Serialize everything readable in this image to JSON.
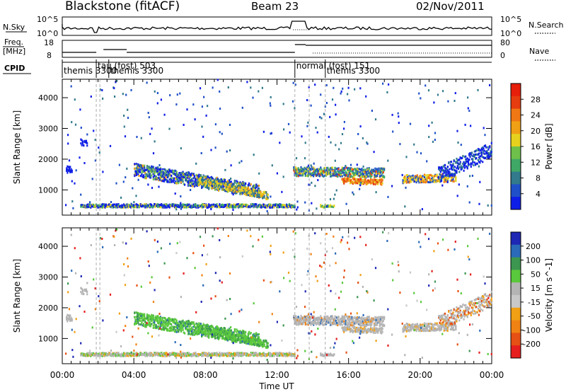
{
  "header": {
    "station": "Blackstone (fitACF)",
    "beam": "Beam 23",
    "date": "02/Nov/2011"
  },
  "labels": {
    "nsky": "N.Sky",
    "nsearch": "N.Search",
    "freq_line1": "Freq.",
    "freq_line2": "[MHz]",
    "nave": "Nave",
    "cpid": "CPID",
    "xlabel": "Time UT",
    "ylabel": "Slant Range [km]"
  },
  "noise_panel": {
    "left_ticks": [
      "10^5",
      "10^0"
    ],
    "right_ticks": [
      "10^5",
      "10^0"
    ]
  },
  "freq_panel": {
    "left_ticks": [
      18,
      8
    ],
    "right_ticks": [
      80,
      0
    ]
  },
  "cpid_segments": [
    {
      "label": "themis 3300",
      "start_hr": 0.0,
      "end_hr": 1.9
    },
    {
      "label": "tau (fost) 503",
      "start_hr": 1.9,
      "end_hr": 2.6
    },
    {
      "label": "themis 3300",
      "start_hr": 2.6,
      "end_hr": 13.0
    },
    {
      "label": "normal (fost) 151",
      "start_hr": 13.0,
      "end_hr": 14.7
    },
    {
      "label": "themis 3300",
      "start_hr": 14.7,
      "end_hr": 24.0
    }
  ],
  "chart_data": [
    {
      "type": "heatmap",
      "name": "power",
      "xlabel": "Time UT",
      "ylabel": "Slant Range [km]",
      "xticks": [
        "00:00",
        "04:00",
        "08:00",
        "12:00",
        "16:00",
        "20:00",
        "00:00"
      ],
      "yticks": [
        1000,
        2000,
        3000,
        4000
      ],
      "xlim_hr": [
        0,
        24
      ],
      "ylim_km": [
        180,
        4600
      ],
      "colorbar": {
        "title": "Power [dB]",
        "ticks": [
          4,
          8,
          12,
          16,
          20,
          24,
          28
        ],
        "range": [
          0,
          32
        ],
        "colors": [
          "#0f1ee6",
          "#2050c8",
          "#327a8c",
          "#3fa866",
          "#6ec04a",
          "#e6d21e",
          "#f0a014",
          "#f07814",
          "#e63c0f",
          "#e61e0a"
        ]
      }
    },
    {
      "type": "heatmap",
      "name": "velocity",
      "xlabel": "Time UT",
      "ylabel": "Slant Range [km]",
      "xticks": [
        "00:00",
        "04:00",
        "08:00",
        "12:00",
        "16:00",
        "20:00",
        "00:00"
      ],
      "yticks": [
        1000,
        2000,
        3000,
        4000
      ],
      "xlim_hr": [
        0,
        24
      ],
      "ylim_km": [
        180,
        4600
      ],
      "colorbar": {
        "title": "Velocity [m s^-1]",
        "ticks": [
          200,
          100,
          50,
          15,
          -15,
          -50,
          -100,
          -200
        ],
        "colors": [
          "#1e28b4",
          "#2a6ab8",
          "#3c9650",
          "#5ac83c",
          "#b4b4b4",
          "#c8c8c8",
          "#f0a014",
          "#f08214",
          "#e65014",
          "#e61e1e"
        ]
      }
    }
  ]
}
